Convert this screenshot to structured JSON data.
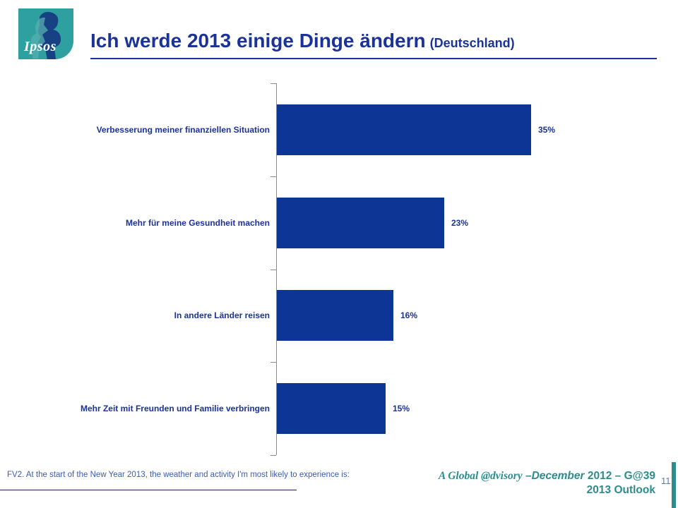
{
  "logo": {
    "text": "Ipsos"
  },
  "header": {
    "title": "Ich werde 2013 einige Dinge ändern",
    "subtitle": "(Deutschland)"
  },
  "chart_data": {
    "type": "bar",
    "orientation": "horizontal",
    "title": "Ich werde 2013 einige Dinge ändern (Deutschland)",
    "categories": [
      "Verbesserung meiner finanziellen Situation",
      "Mehr für meine Gesundheit machen",
      "In andere Länder reisen",
      "Mehr Zeit mit Freunden und Familie verbringen"
    ],
    "values": [
      35,
      23,
      16,
      15
    ],
    "value_labels": [
      "35%",
      "23%",
      "16%",
      "15%"
    ],
    "unit": "%",
    "xlim": [
      0,
      52
    ],
    "grid": false,
    "legend": "none",
    "bar_color": "#0C3596",
    "label_color": "#1B3399",
    "axis_color": "#8C8C8C"
  },
  "footer": {
    "footnote": "FV2.  At the start of the New Year 2013, the weather and activity I'm most likely to experience is:",
    "credit_brand": "A Global @dvisory",
    "credit_month": " –December",
    "credit_rest": " 2012 – G@39",
    "credit_line2": "2013 Outlook",
    "page_number": "11"
  },
  "colors": {
    "navy": "#1B3399",
    "bar_navy": "#0C3596",
    "teal": "#2FA0A0",
    "credit_teal": "#2E8C8C",
    "footnote_blue": "#3C5CB0",
    "page_number_blue": "#5E7DB0",
    "axis_gray": "#8C8C8C"
  }
}
